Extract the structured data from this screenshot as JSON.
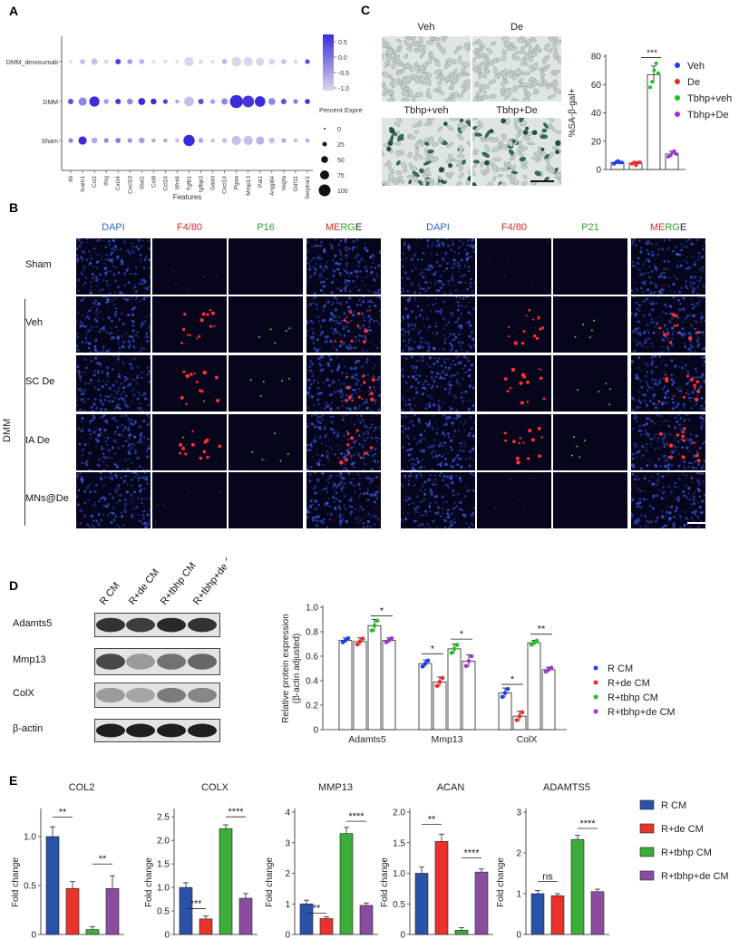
{
  "panels": {
    "A": {
      "letter": "A"
    },
    "B": {
      "letter": "B"
    },
    "C": {
      "letter": "C"
    },
    "D": {
      "letter": "D"
    },
    "E": {
      "letter": "E"
    }
  },
  "panelA": {
    "groups": [
      "DMM_denosumab",
      "DMM",
      "Sham"
    ],
    "features": [
      "Il6",
      "Icam1",
      "Ccl2",
      "Ifng",
      "Cxcl4",
      "Cxcl10",
      "Stat1",
      "Ccl8",
      "Ccl24",
      "Wnt4",
      "Tgfb1",
      "Igfbp3",
      "Gadd",
      "Cxcl14",
      "Pgaa",
      "Mmp13",
      "Pai1",
      "Angptl4",
      "Vegfa",
      "Gdf11",
      "Serpine1"
    ],
    "xlabel": "Features",
    "colorbar_ticks": [
      "0.5",
      "0.0",
      "-0.5",
      "-1.0"
    ],
    "legend_title": "Percent Expressed",
    "legend_sizes": [
      "0",
      "25",
      "50",
      "75",
      "100"
    ],
    "low_color": "#d9d7ee",
    "high_color": "#3b2bdc"
  },
  "panelB": {
    "left_cols": [
      "DAPI",
      "F4/80",
      "P16",
      "MERGE"
    ],
    "right_cols": [
      "DAPI",
      "F4/80",
      "P21",
      "MERGE"
    ],
    "rows": [
      "Sham",
      "Veh",
      "SC De",
      "IA De",
      "MNs@De"
    ],
    "group_label": "DMM"
  },
  "panelC": {
    "image_labels": [
      "Veh",
      "De",
      "Tbhp+veh",
      "Tbhp+De"
    ],
    "chart": {
      "ylabel": "%SA-β-gal+",
      "yticks": [
        "0",
        "20",
        "40",
        "60",
        "80"
      ],
      "sig": "***",
      "legend": [
        "Veh",
        "De",
        "Tbhp+veh",
        "Tbhp+De"
      ]
    }
  },
  "panelD": {
    "lanes": [
      "R CM",
      "R+de CM",
      "R+tbhp CM",
      "R+tbhp+de CM"
    ],
    "blots": [
      "Adamts5",
      "Mmp13",
      "ColX",
      "β-actin"
    ],
    "chart": {
      "ylabel": "Relative protein expression",
      "ylabel2": "(β-actin adjusted)",
      "yticks": [
        "0",
        "0.2",
        "0.4",
        "0.6",
        "0.8",
        "1.0"
      ],
      "groups": [
        "Adamts5",
        "Mmp13",
        "ColX"
      ],
      "sig": [
        "*",
        "*",
        "*",
        "*",
        "**"
      ],
      "legend": [
        "R CM",
        "R+de CM",
        "R+tbhp CM",
        "R+tbhp+de CM"
      ]
    }
  },
  "panelE": {
    "ylabel": "Fold change",
    "charts": [
      {
        "title": "COL2",
        "yticks": [
          "0",
          "0.5",
          "1.0"
        ],
        "sig": [
          "**",
          "**"
        ]
      },
      {
        "title": "COLX",
        "yticks": [
          "0",
          "0.5",
          "1.0",
          "1.5",
          "2.0",
          "2.5"
        ],
        "sig": [
          "***",
          "****"
        ]
      },
      {
        "title": "MMP13",
        "yticks": [
          "0",
          "1",
          "2",
          "3",
          "4"
        ],
        "sig": [
          "**",
          "****"
        ]
      },
      {
        "title": "ACAN",
        "yticks": [
          "0",
          "0.5",
          "1.0",
          "1.5",
          "2.0"
        ],
        "sig": [
          "**",
          "****"
        ]
      },
      {
        "title": "ADAMTS5",
        "yticks": [
          "0",
          "1",
          "2",
          "3"
        ],
        "sig": [
          "ns",
          "****"
        ]
      }
    ],
    "legend": [
      "R CM",
      "R+de CM",
      "R+tbhp CM",
      "R+tbhp+de CM"
    ]
  },
  "colors": {
    "blue": "#2a52a8",
    "red": "#e8322b",
    "green": "#3aad3a",
    "purple": "#8a4c9e",
    "dot_blue": "#1f3cf2",
    "dot_red": "#ef2b2b",
    "dot_green": "#1ec41e",
    "dot_purple": "#a431d6"
  },
  "chart_data": [
    {
      "type": "scatter",
      "name_ref": "panel-A-dotplot",
      "groups": [
        "DMM_denosumab",
        "DMM",
        "Sham"
      ],
      "features": [
        "Il6",
        "Icam1",
        "Ccl2",
        "Ifng",
        "Cxcl4",
        "Cxcl10",
        "Stat1",
        "Ccl8",
        "Ccl24",
        "Wnt4",
        "Tgfb1",
        "Igfbp3",
        "Gadd",
        "Cxcl14",
        "Pgaa",
        "Mmp13",
        "Pai1",
        "Angptl4",
        "Vegfa",
        "Gdf11",
        "Serpine1"
      ],
      "percent_expressed": [
        [
          2,
          8,
          15,
          5,
          10,
          8,
          8,
          2,
          2,
          2,
          40,
          4,
          2,
          8,
          45,
          40,
          30,
          15,
          8,
          4,
          6
        ],
        [
          10,
          30,
          50,
          8,
          10,
          12,
          20,
          12,
          6,
          4,
          45,
          10,
          6,
          15,
          90,
          70,
          55,
          20,
          10,
          6,
          8
        ],
        [
          6,
          30,
          12,
          6,
          8,
          6,
          12,
          4,
          4,
          4,
          65,
          8,
          4,
          8,
          40,
          40,
          30,
          12,
          6,
          4,
          4
        ]
      ],
      "avg_expression": [
        [
          -1.0,
          -0.8,
          -0.8,
          -1.0,
          0.3,
          -0.5,
          -0.7,
          -1.0,
          -1.0,
          -1.0,
          -1.0,
          -1.0,
          -1.0,
          -0.7,
          -1.0,
          -1.0,
          -1.0,
          -1.0,
          -0.8,
          -1.0,
          0.2
        ],
        [
          0.2,
          -0.3,
          0.7,
          -0.5,
          0.4,
          -0.3,
          0.6,
          0.5,
          0.3,
          -0.6,
          -0.8,
          0.2,
          -0.5,
          -0.3,
          0.7,
          0.4,
          0.6,
          -0.3,
          0.2,
          -0.2,
          0.4
        ],
        [
          -0.3,
          0.7,
          -0.6,
          -0.3,
          -0.2,
          -0.4,
          -0.5,
          -0.6,
          -0.6,
          -0.8,
          0.7,
          -0.6,
          -0.8,
          -0.8,
          -0.8,
          -0.8,
          -0.7,
          -0.8,
          -0.6,
          -0.8,
          -0.6
        ]
      ],
      "color_range": [
        -1.0,
        0.5
      ]
    },
    {
      "type": "bar",
      "name_ref": "panel-C-chart",
      "categories": [
        "Veh",
        "De",
        "Tbhp+veh",
        "Tbhp+De"
      ],
      "values": [
        5,
        4.5,
        67,
        11
      ],
      "errors": [
        1,
        1,
        6,
        2
      ],
      "points": [
        [
          4,
          5,
          6,
          5,
          5
        ],
        [
          4,
          5,
          3,
          5,
          5
        ],
        [
          58,
          62,
          70,
          75,
          68
        ],
        [
          9,
          10,
          12,
          13,
          11
        ]
      ],
      "ylim": [
        0,
        80
      ]
    },
    {
      "type": "bar",
      "name_ref": "panel-D-chart",
      "categories": [
        "Adamts5",
        "Mmp13",
        "ColX"
      ],
      "series": [
        {
          "name": "R CM",
          "values": [
            0.73,
            0.54,
            0.3
          ],
          "errors": [
            0.02,
            0.03,
            0.04
          ]
        },
        {
          "name": "R+de CM",
          "values": [
            0.72,
            0.39,
            0.11
          ],
          "errors": [
            0.03,
            0.04,
            0.04
          ]
        },
        {
          "name": "R+tbhp CM",
          "values": [
            0.85,
            0.66,
            0.71
          ],
          "errors": [
            0.05,
            0.04,
            0.02
          ]
        },
        {
          "name": "R+tbhp+de CM",
          "values": [
            0.73,
            0.56,
            0.49
          ],
          "errors": [
            0.02,
            0.05,
            0.02
          ]
        }
      ],
      "ylim": [
        0,
        1.0
      ]
    },
    {
      "type": "bar",
      "name_ref": "panel-E-charts",
      "categories": [
        "R CM",
        "R+de CM",
        "R+tbhp CM",
        "R+tbhp+de CM"
      ],
      "charts": [
        {
          "title": "COL2",
          "values": [
            1.0,
            0.47,
            0.05,
            0.47
          ],
          "errors": [
            0.1,
            0.07,
            0.03,
            0.13
          ],
          "ylim": [
            0,
            1.25
          ]
        },
        {
          "title": "COLX",
          "values": [
            1.0,
            0.33,
            2.25,
            0.77
          ],
          "errors": [
            0.1,
            0.06,
            0.08,
            0.1
          ],
          "ylim": [
            0,
            2.6
          ]
        },
        {
          "title": "MMP13",
          "values": [
            1.0,
            0.52,
            3.3,
            0.95
          ],
          "errors": [
            0.12,
            0.06,
            0.2,
            0.08
          ],
          "ylim": [
            0,
            4.0
          ]
        },
        {
          "title": "ACAN",
          "values": [
            1.0,
            1.52,
            0.07,
            1.02
          ],
          "errors": [
            0.1,
            0.12,
            0.04,
            0.05
          ],
          "ylim": [
            0,
            2.0
          ]
        },
        {
          "title": "ADAMTS5",
          "values": [
            1.0,
            0.95,
            2.33,
            1.05
          ],
          "errors": [
            0.08,
            0.05,
            0.1,
            0.06
          ],
          "ylim": [
            0,
            3.0
          ]
        }
      ]
    }
  ]
}
